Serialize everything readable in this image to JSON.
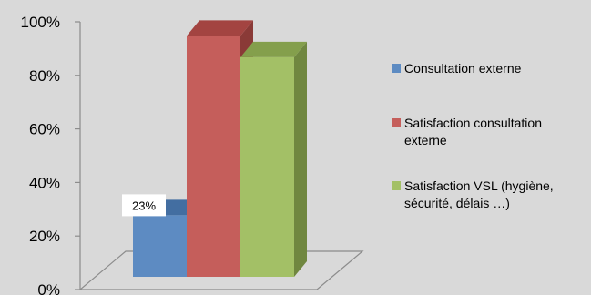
{
  "chart_data": {
    "type": "bar",
    "title": "",
    "xlabel": "",
    "ylabel": "",
    "ylim": [
      0,
      100
    ],
    "yticks": [
      "0%",
      "20%",
      "40%",
      "60%",
      "80%",
      "100%"
    ],
    "series": [
      {
        "name": "Consultation externe",
        "value": 23,
        "label": "23%",
        "color": "#4f81bd"
      },
      {
        "name": "Satisfaction consultation externe",
        "value": 90,
        "label": "",
        "color": "#c0504d"
      },
      {
        "name": "Satisfaction VSL (hygiène, sécurité, délais …)",
        "value": 82,
        "label": "",
        "color": "#9bbb59"
      }
    ],
    "legend_position": "right",
    "grid": false
  },
  "legend": {
    "items": [
      {
        "lines": [
          "Consultation externe"
        ]
      },
      {
        "lines": [
          "Satisfaction consultation",
          "externe"
        ]
      },
      {
        "lines": [
          "Satisfaction VSL (hygiène,",
          "sécurité, délais …)"
        ]
      }
    ]
  }
}
